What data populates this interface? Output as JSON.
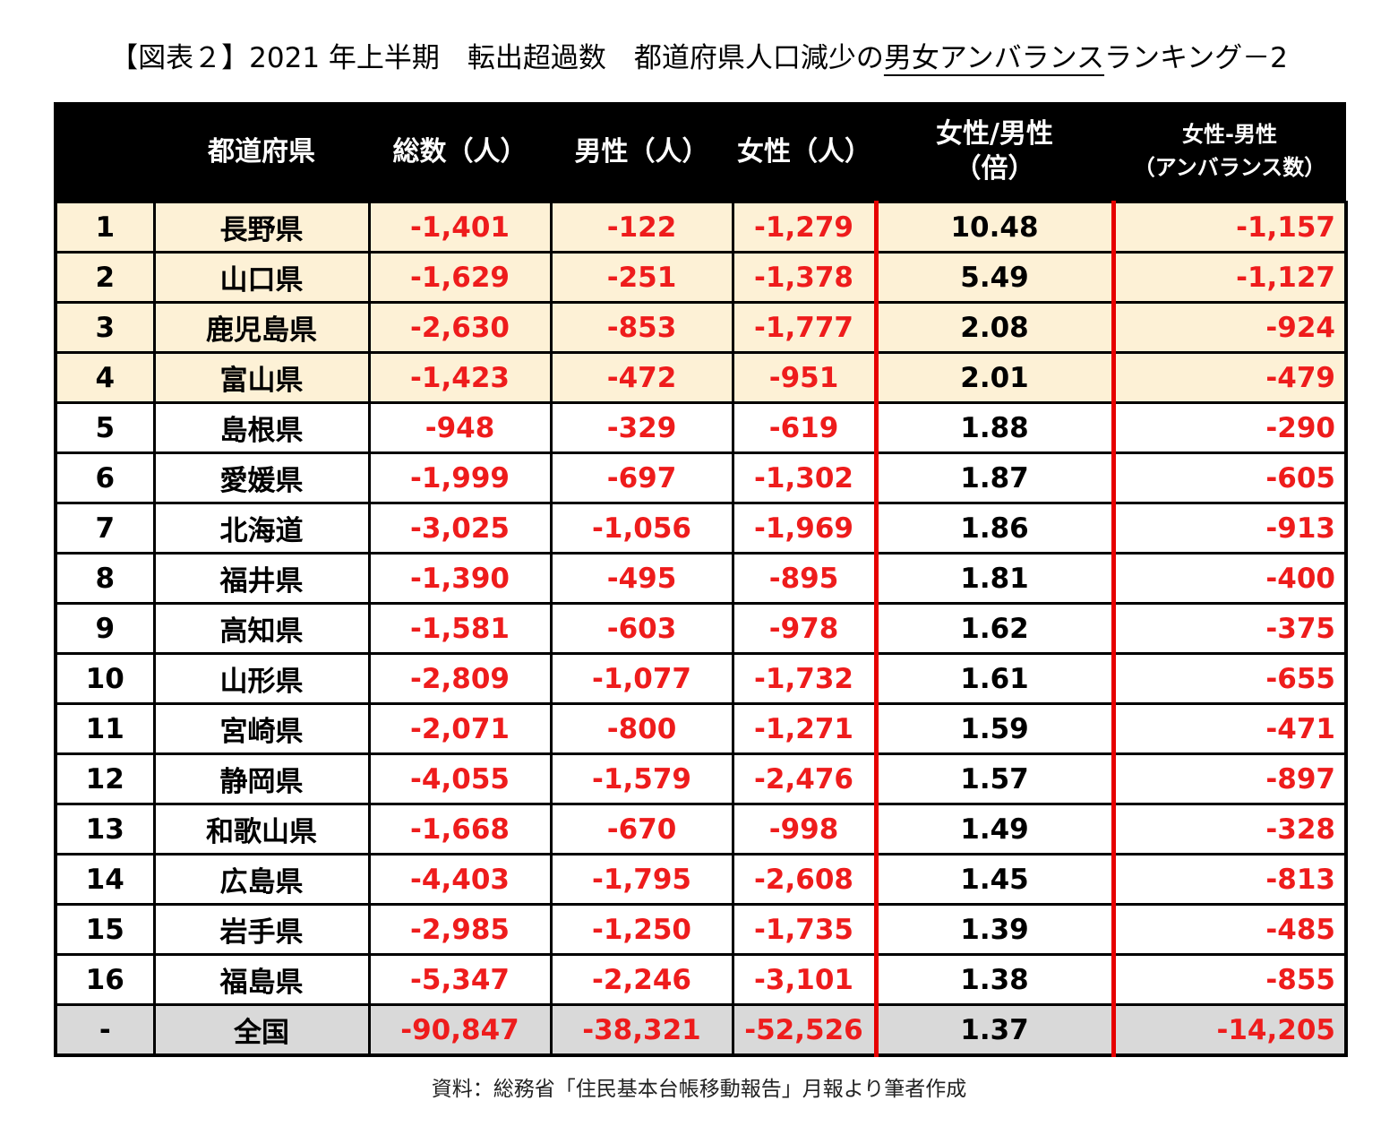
{
  "title": {
    "prefix": "【図表２】2021 年上半期　転出超過数　都道府県人口減少の",
    "underlined": "男女アンバランス",
    "suffix": "ランキング－2"
  },
  "table": {
    "headers": {
      "rank": "",
      "prefecture": "都道府県",
      "total": "総数（人）",
      "male": "男性（人）",
      "female": "女性（人）",
      "ratio_line1": "女性/男性",
      "ratio_line2": "（倍）",
      "diff_line1": "女性-男性",
      "diff_line2": "（アンバランス数）"
    },
    "rows": [
      {
        "rank": "1",
        "pref": "長野県",
        "total": "-1,401",
        "male": "-122",
        "female": "-1,279",
        "ratio": "10.48",
        "diff": "-1,157"
      },
      {
        "rank": "2",
        "pref": "山口県",
        "total": "-1,629",
        "male": "-251",
        "female": "-1,378",
        "ratio": "5.49",
        "diff": "-1,127"
      },
      {
        "rank": "3",
        "pref": "鹿児島県",
        "total": "-2,630",
        "male": "-853",
        "female": "-1,777",
        "ratio": "2.08",
        "diff": "-924"
      },
      {
        "rank": "4",
        "pref": "富山県",
        "total": "-1,423",
        "male": "-472",
        "female": "-951",
        "ratio": "2.01",
        "diff": "-479"
      },
      {
        "rank": "5",
        "pref": "島根県",
        "total": "-948",
        "male": "-329",
        "female": "-619",
        "ratio": "1.88",
        "diff": "-290"
      },
      {
        "rank": "6",
        "pref": "愛媛県",
        "total": "-1,999",
        "male": "-697",
        "female": "-1,302",
        "ratio": "1.87",
        "diff": "-605"
      },
      {
        "rank": "7",
        "pref": "北海道",
        "total": "-3,025",
        "male": "-1,056",
        "female": "-1,969",
        "ratio": "1.86",
        "diff": "-913"
      },
      {
        "rank": "8",
        "pref": "福井県",
        "total": "-1,390",
        "male": "-495",
        "female": "-895",
        "ratio": "1.81",
        "diff": "-400"
      },
      {
        "rank": "9",
        "pref": "高知県",
        "total": "-1,581",
        "male": "-603",
        "female": "-978",
        "ratio": "1.62",
        "diff": "-375"
      },
      {
        "rank": "10",
        "pref": "山形県",
        "total": "-2,809",
        "male": "-1,077",
        "female": "-1,732",
        "ratio": "1.61",
        "diff": "-655"
      },
      {
        "rank": "11",
        "pref": "宮崎県",
        "total": "-2,071",
        "male": "-800",
        "female": "-1,271",
        "ratio": "1.59",
        "diff": "-471"
      },
      {
        "rank": "12",
        "pref": "静岡県",
        "total": "-4,055",
        "male": "-1,579",
        "female": "-2,476",
        "ratio": "1.57",
        "diff": "-897"
      },
      {
        "rank": "13",
        "pref": "和歌山県",
        "total": "-1,668",
        "male": "-670",
        "female": "-998",
        "ratio": "1.49",
        "diff": "-328"
      },
      {
        "rank": "14",
        "pref": "広島県",
        "total": "-4,403",
        "male": "-1,795",
        "female": "-2,608",
        "ratio": "1.45",
        "diff": "-813"
      },
      {
        "rank": "15",
        "pref": "岩手県",
        "total": "-2,985",
        "male": "-1,250",
        "female": "-1,735",
        "ratio": "1.39",
        "diff": "-485"
      },
      {
        "rank": "16",
        "pref": "福島県",
        "total": "-5,347",
        "male": "-2,246",
        "female": "-3,101",
        "ratio": "1.38",
        "diff": "-855"
      }
    ],
    "total_row": {
      "rank": "-",
      "pref": "全国",
      "total": "-90,847",
      "male": "-38,321",
      "female": "-52,526",
      "ratio": "1.37",
      "diff": "-14,205"
    },
    "highlighted_rank_count": 4
  },
  "colors": {
    "negative_value": "#ee1c1c",
    "highlight_row": "#fdf1d6",
    "total_row": "#d9d9d9",
    "header_bg": "#000000",
    "divider_red": "#e60000"
  },
  "source": "資料：総務省「住民基本台帳移動報告」月報より筆者作成"
}
